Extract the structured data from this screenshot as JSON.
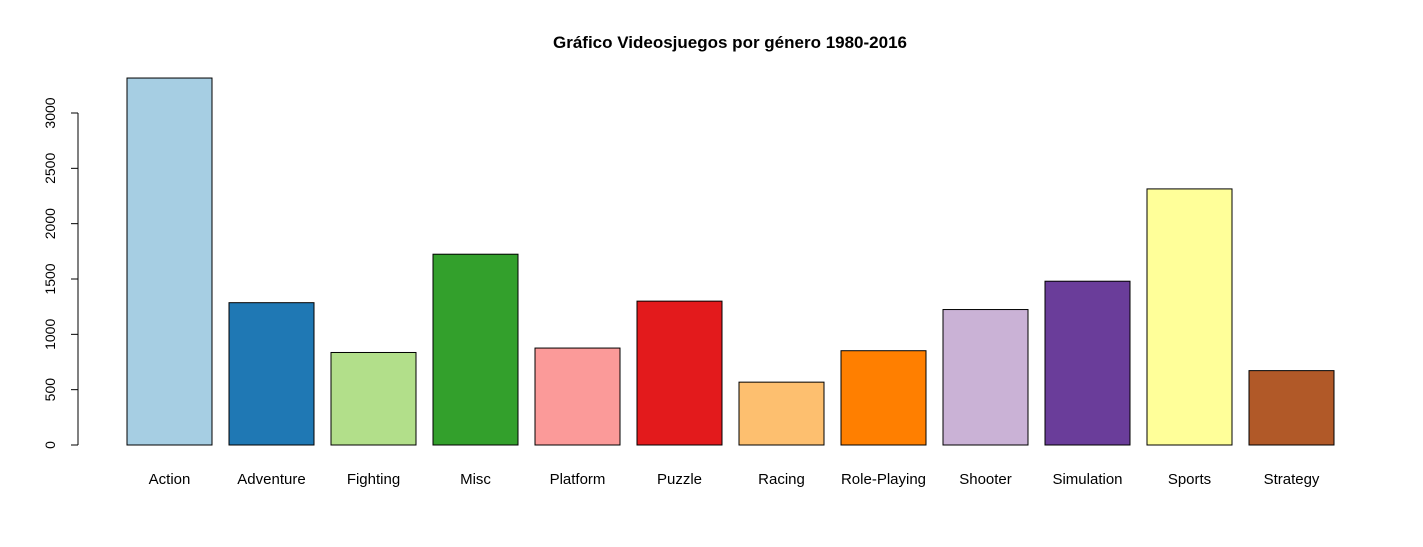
{
  "chart_data": {
    "type": "bar",
    "title": "Gráfico Videosjuegos por género 1980-2016",
    "xlabel": "",
    "ylabel": "",
    "ylim": [
      0,
      3300
    ],
    "yticks": [
      0,
      500,
      1000,
      1500,
      2000,
      2500,
      3000
    ],
    "categories": [
      "Action",
      "Adventure",
      "Fighting",
      "Misc",
      "Platform",
      "Puzzle",
      "Racing",
      "Role-Playing",
      "Shooter",
      "Simulation",
      "Sports",
      "Strategy"
    ],
    "values": [
      3316,
      1286,
      836,
      1724,
      876,
      1300,
      568,
      852,
      1224,
      1480,
      2314,
      672
    ],
    "colors": [
      "#A6CEE3",
      "#1F78B4",
      "#B2DF8A",
      "#33A02C",
      "#FB9A99",
      "#E31A1C",
      "#FDBF6F",
      "#FF7F00",
      "#CAB2D6",
      "#6A3D9A",
      "#FFFF99",
      "#B15928"
    ],
    "grid": false,
    "legend": "none"
  }
}
